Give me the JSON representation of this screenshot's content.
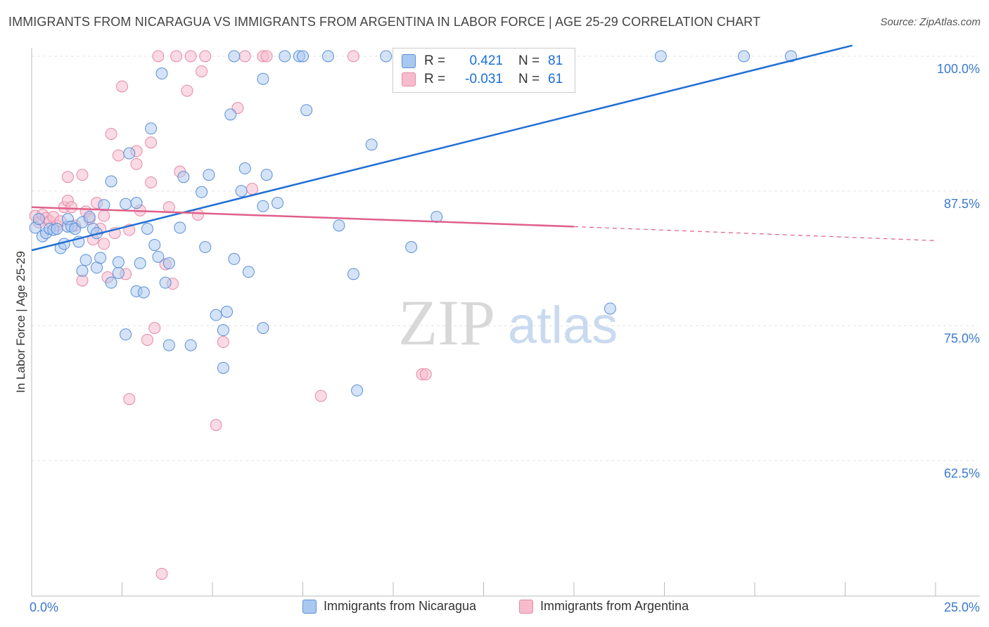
{
  "title": "IMMIGRANTS FROM NICARAGUA VS IMMIGRANTS FROM ARGENTINA IN LABOR FORCE | AGE 25-29 CORRELATION CHART",
  "source": "Source: ZipAtlas.com",
  "watermark": {
    "zip": "ZIP",
    "atlas": "atlas"
  },
  "legend": {
    "r_label": "R =",
    "n_label": "N =",
    "rows": [
      {
        "r": "0.421",
        "n": "81"
      },
      {
        "r": "-0.031",
        "n": "61"
      }
    ]
  },
  "colors": {
    "blue_fill": "#a9c8f0",
    "blue_stroke": "#5b8fd6",
    "blue_line": "#1f6fd6",
    "pink_fill": "#f6bccd",
    "pink_stroke": "#e58aa6",
    "pink_line": "#e0608a",
    "tick_label": "#3a78d0",
    "grid": "#e3e3e3"
  },
  "chart_data": {
    "type": "scatter",
    "title": "IMMIGRANTS FROM NICARAGUA VS IMMIGRANTS FROM ARGENTINA IN LABOR FORCE | AGE 25-29 CORRELATION CHART",
    "xlabel": "",
    "ylabel": "In Labor Force | Age 25-29",
    "xlim": [
      0,
      25
    ],
    "ylim": [
      51.5,
      101.5
    ],
    "x_tick_labels": [
      "0.0%",
      "25.0%"
    ],
    "y_ticks": [
      100,
      87.5,
      75,
      62.5
    ],
    "y_tick_labels": [
      "100.0%",
      "87.5%",
      "75.0%",
      "62.5%"
    ],
    "grid": true,
    "legend_position": "top-center",
    "series": [
      {
        "name": "Immigrants from Nicaragua",
        "color": "#5b8fd6",
        "r": 0.421,
        "n": 81,
        "trend": {
          "x": [
            0,
            22.7
          ],
          "y": [
            82,
            101
          ]
        },
        "points": [
          [
            0.1,
            84.1
          ],
          [
            0.2,
            84.9
          ],
          [
            0.3,
            83.3
          ],
          [
            0.4,
            83.6
          ],
          [
            0.5,
            84.0
          ],
          [
            0.6,
            83.9
          ],
          [
            0.7,
            84.0
          ],
          [
            0.8,
            82.2
          ],
          [
            0.9,
            82.6
          ],
          [
            1.0,
            84.2
          ],
          [
            1.0,
            84.9
          ],
          [
            1.1,
            84.2
          ],
          [
            1.2,
            84.0
          ],
          [
            1.3,
            82.8
          ],
          [
            1.4,
            84.6
          ],
          [
            1.4,
            80.1
          ],
          [
            1.5,
            81.1
          ],
          [
            1.6,
            85.1
          ],
          [
            1.7,
            84.0
          ],
          [
            1.8,
            83.6
          ],
          [
            1.8,
            80.4
          ],
          [
            1.9,
            81.3
          ],
          [
            2.0,
            86.2
          ],
          [
            2.2,
            88.4
          ],
          [
            2.2,
            79.0
          ],
          [
            2.4,
            79.9
          ],
          [
            2.4,
            80.9
          ],
          [
            2.6,
            74.2
          ],
          [
            2.6,
            86.3
          ],
          [
            2.7,
            91.0
          ],
          [
            2.9,
            86.4
          ],
          [
            2.9,
            78.2
          ],
          [
            3.0,
            80.8
          ],
          [
            3.1,
            78.1
          ],
          [
            3.2,
            84.0
          ],
          [
            3.3,
            93.3
          ],
          [
            3.4,
            82.5
          ],
          [
            3.5,
            81.4
          ],
          [
            3.6,
            98.4
          ],
          [
            3.7,
            79.0
          ],
          [
            3.8,
            80.8
          ],
          [
            3.8,
            73.2
          ],
          [
            4.1,
            84.1
          ],
          [
            4.2,
            88.8
          ],
          [
            4.4,
            73.2
          ],
          [
            4.7,
            87.4
          ],
          [
            4.8,
            82.3
          ],
          [
            4.9,
            89.0
          ],
          [
            5.1,
            76.0
          ],
          [
            5.3,
            74.6
          ],
          [
            5.3,
            71.1
          ],
          [
            5.4,
            76.3
          ],
          [
            5.5,
            94.6
          ],
          [
            5.6,
            100
          ],
          [
            5.6,
            81.2
          ],
          [
            5.8,
            87.5
          ],
          [
            5.9,
            89.6
          ],
          [
            6.0,
            80.0
          ],
          [
            6.4,
            97.9
          ],
          [
            6.4,
            86.1
          ],
          [
            6.4,
            74.8
          ],
          [
            6.5,
            89.0
          ],
          [
            6.8,
            86.4
          ],
          [
            7.0,
            100
          ],
          [
            7.4,
            100
          ],
          [
            7.5,
            100
          ],
          [
            7.6,
            95.0
          ],
          [
            8.2,
            100
          ],
          [
            8.5,
            84.3
          ],
          [
            8.9,
            79.8
          ],
          [
            9.0,
            69.0
          ],
          [
            9.4,
            91.8
          ],
          [
            9.8,
            100
          ],
          [
            10.5,
            82.3
          ],
          [
            11.2,
            85.1
          ],
          [
            12.1,
            100
          ],
          [
            12.5,
            100
          ],
          [
            16.0,
            76.6
          ],
          [
            17.4,
            100
          ],
          [
            19.7,
            100
          ],
          [
            21.0,
            100
          ]
        ]
      },
      {
        "name": "Immigrants from Argentina",
        "color": "#e58aa6",
        "r": -0.031,
        "n": 61,
        "trend": {
          "x": [
            0,
            15
          ],
          "y": [
            86.0,
            84.2
          ]
        },
        "trend_ext": {
          "x": [
            15,
            25
          ],
          "y": [
            84.2,
            82.9
          ]
        },
        "points": [
          [
            0.1,
            85.2
          ],
          [
            0.2,
            84.6
          ],
          [
            0.3,
            85.3
          ],
          [
            0.4,
            85.0
          ],
          [
            0.5,
            84.7
          ],
          [
            0.6,
            85.1
          ],
          [
            0.7,
            84.3
          ],
          [
            0.8,
            84.7
          ],
          [
            0.9,
            86.0
          ],
          [
            1.0,
            86.6
          ],
          [
            1.0,
            88.8
          ],
          [
            1.1,
            86.0
          ],
          [
            1.2,
            84.3
          ],
          [
            1.4,
            89.0
          ],
          [
            1.4,
            79.2
          ],
          [
            1.5,
            85.6
          ],
          [
            1.6,
            84.9
          ],
          [
            1.7,
            83.0
          ],
          [
            1.8,
            86.4
          ],
          [
            1.9,
            84.0
          ],
          [
            2.0,
            82.6
          ],
          [
            2.0,
            85.2
          ],
          [
            2.1,
            79.5
          ],
          [
            2.2,
            92.8
          ],
          [
            2.3,
            83.6
          ],
          [
            2.4,
            90.8
          ],
          [
            2.5,
            97.2
          ],
          [
            2.6,
            79.8
          ],
          [
            2.7,
            68.2
          ],
          [
            2.7,
            83.9
          ],
          [
            2.9,
            91.2
          ],
          [
            2.9,
            90.0
          ],
          [
            3.0,
            85.7
          ],
          [
            3.2,
            73.7
          ],
          [
            3.3,
            92.0
          ],
          [
            3.3,
            88.3
          ],
          [
            3.4,
            74.8
          ],
          [
            3.5,
            100
          ],
          [
            3.6,
            52.0
          ],
          [
            3.7,
            80.7
          ],
          [
            3.8,
            86.0
          ],
          [
            3.9,
            78.9
          ],
          [
            4.0,
            100
          ],
          [
            4.1,
            89.3
          ],
          [
            4.3,
            96.8
          ],
          [
            4.4,
            100
          ],
          [
            4.6,
            85.3
          ],
          [
            4.7,
            98.6
          ],
          [
            4.8,
            100
          ],
          [
            5.1,
            65.8
          ],
          [
            5.3,
            73.5
          ],
          [
            5.7,
            95.2
          ],
          [
            5.9,
            100
          ],
          [
            6.1,
            87.7
          ],
          [
            6.4,
            100
          ],
          [
            6.5,
            100
          ],
          [
            8.0,
            68.5
          ],
          [
            8.9,
            100
          ],
          [
            10.8,
            70.5
          ],
          [
            10.9,
            70.5
          ],
          [
            11.0,
            100
          ]
        ]
      }
    ]
  },
  "bottom_legend": [
    "Immigrants from Nicaragua",
    "Immigrants from Argentina"
  ]
}
